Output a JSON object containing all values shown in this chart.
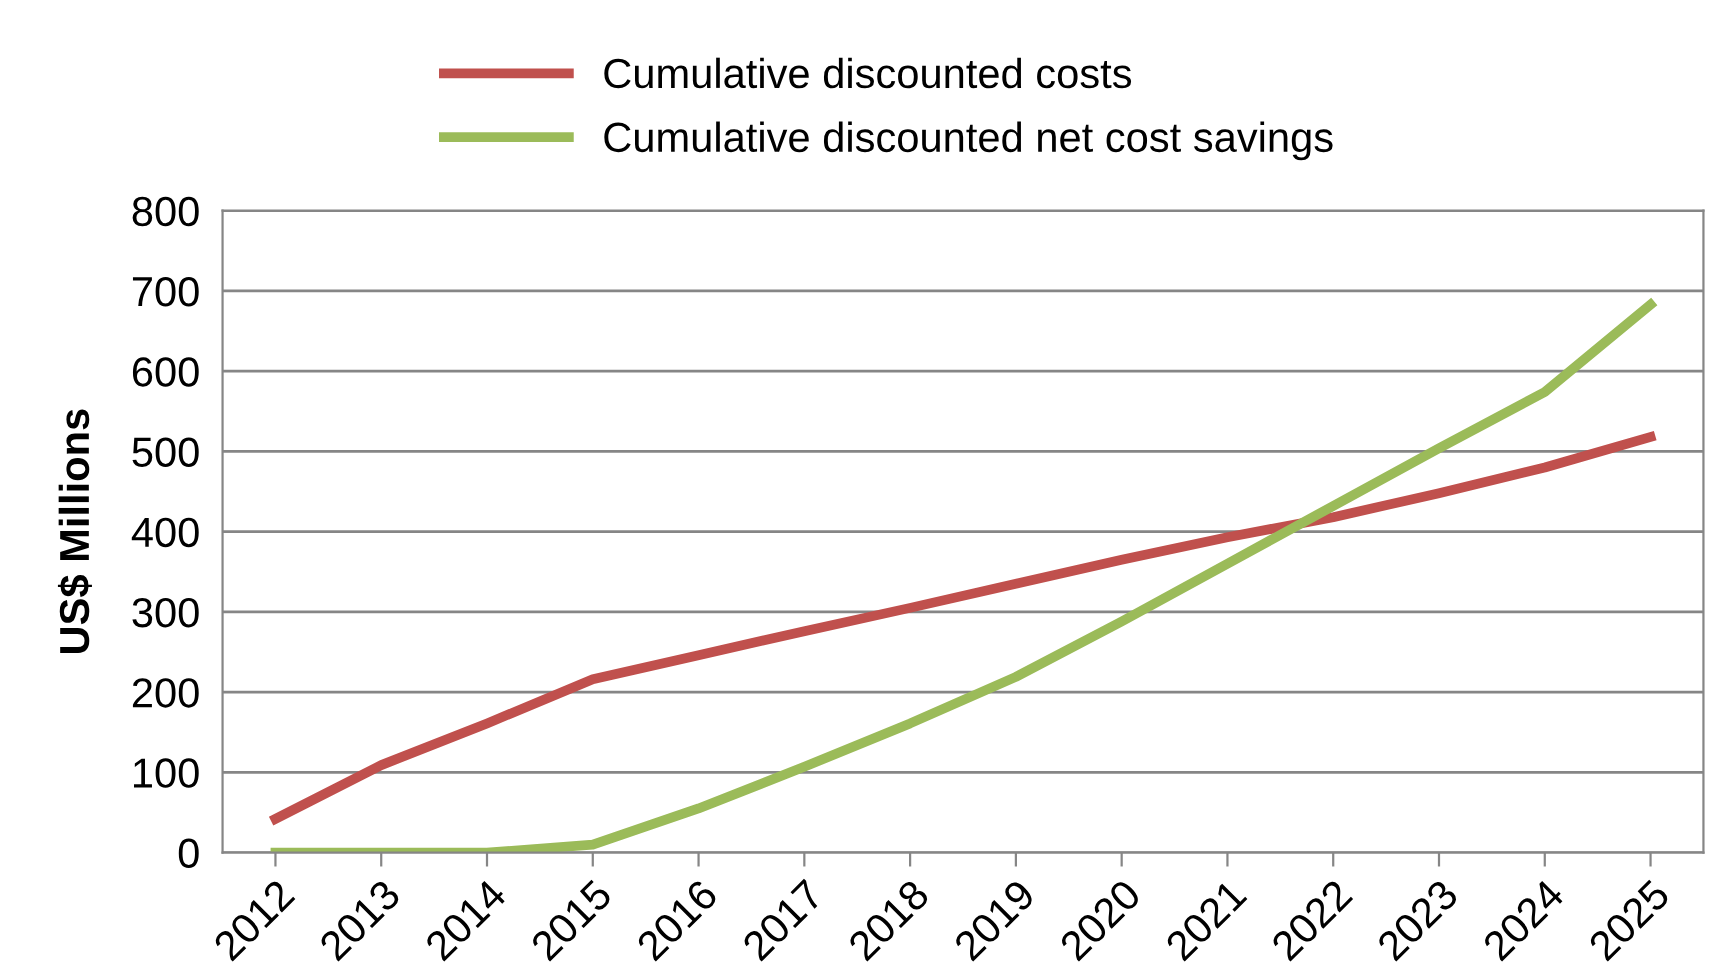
{
  "chart_data": {
    "type": "line",
    "ylabel": "US$ Millions",
    "categories": [
      "2012",
      "2013",
      "2014",
      "2015",
      "2016",
      "2017",
      "2018",
      "2019",
      "2020",
      "2021",
      "2022",
      "2023",
      "2024",
      "2025"
    ],
    "series": [
      {
        "name": "Cumulative discounted costs",
        "color": "#c0504d",
        "values": [
          42,
          109,
          161,
          216,
          246,
          276,
          305,
          335,
          365,
          393,
          418,
          448,
          480,
          518
        ]
      },
      {
        "name": "Cumulative discounted net cost savings",
        "color": "#9bbb59",
        "values": [
          0,
          0,
          0,
          10,
          55,
          107,
          161,
          219,
          288,
          360,
          432,
          504,
          574,
          683
        ]
      }
    ],
    "ylim": [
      0,
      800
    ],
    "yticks": [
      0,
      100,
      200,
      300,
      400,
      500,
      600,
      700,
      800
    ],
    "grid": "y",
    "legend": "top",
    "marker": "none",
    "line_style": "solid"
  }
}
